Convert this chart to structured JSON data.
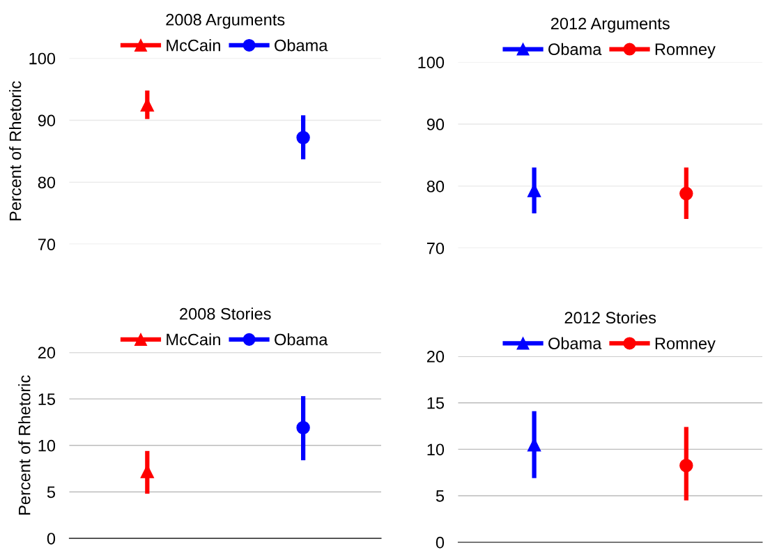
{
  "chart_data": [
    {
      "type": "scatter",
      "title": "2008 Arguments",
      "ylabel": "Percent of Rhetoric",
      "categories": [
        null,
        null
      ],
      "ylim": [
        70,
        100
      ],
      "yticks": [
        70,
        80,
        90,
        100
      ],
      "grid": "y",
      "legend": "top",
      "tick_labels": "y",
      "series": [
        {
          "name": "McCain",
          "color": "#ff0000",
          "marker": "triangle",
          "values": [
            92.5,
            null
          ],
          "errors": [
            [
              90.2,
              94.8
            ],
            null
          ]
        },
        {
          "name": "Obama",
          "color": "#0000ff",
          "marker": "circle",
          "values": [
            null,
            87.2
          ],
          "errors": [
            null,
            [
              83.7,
              90.8
            ]
          ]
        }
      ]
    },
    {
      "type": "scatter",
      "title": "2012 Arguments",
      "categories": [
        null,
        null
      ],
      "ylim": [
        70,
        100
      ],
      "yticks": [
        70,
        80,
        90,
        100
      ],
      "grid": "y",
      "legend": "top",
      "tick_labels": "y",
      "series": [
        {
          "name": "Obama",
          "color": "#0000ff",
          "marker": "triangle",
          "values": [
            79.3,
            null
          ],
          "errors": [
            [
              75.6,
              83.0
            ],
            null
          ]
        },
        {
          "name": "Romney",
          "color": "#ff0000",
          "marker": "circle",
          "values": [
            null,
            78.8
          ],
          "errors": [
            null,
            [
              74.7,
              83.0
            ]
          ]
        }
      ]
    },
    {
      "type": "scatter",
      "title": "2008 Stories",
      "ylabel": "Percent of Rhetoric",
      "categories": [
        null,
        null
      ],
      "ylim": [
        0,
        20
      ],
      "yticks": [
        0,
        5,
        10,
        15,
        20
      ],
      "grid": "y",
      "legend": "top",
      "tick_labels": "y",
      "series": [
        {
          "name": "McCain",
          "color": "#ff0000",
          "marker": "triangle",
          "values": [
            7.2,
            null
          ],
          "errors": [
            [
              4.8,
              9.4
            ],
            null
          ]
        },
        {
          "name": "Obama",
          "color": "#0000ff",
          "marker": "circle",
          "values": [
            null,
            11.9
          ],
          "errors": [
            null,
            [
              8.4,
              15.3
            ]
          ]
        }
      ]
    },
    {
      "type": "scatter",
      "title": "2012 Stories",
      "categories": [
        null,
        null
      ],
      "ylim": [
        0,
        20
      ],
      "yticks": [
        0,
        5,
        10,
        15,
        20
      ],
      "grid": "y",
      "legend": "top",
      "tick_labels": "y",
      "series": [
        {
          "name": "Obama",
          "color": "#0000ff",
          "marker": "triangle",
          "values": [
            10.5,
            null
          ],
          "errors": [
            [
              6.9,
              14.1
            ],
            null
          ]
        },
        {
          "name": "Romney",
          "color": "#ff0000",
          "marker": "circle",
          "values": [
            null,
            8.25
          ],
          "errors": [
            null,
            [
              4.5,
              12.4
            ]
          ]
        }
      ]
    }
  ]
}
